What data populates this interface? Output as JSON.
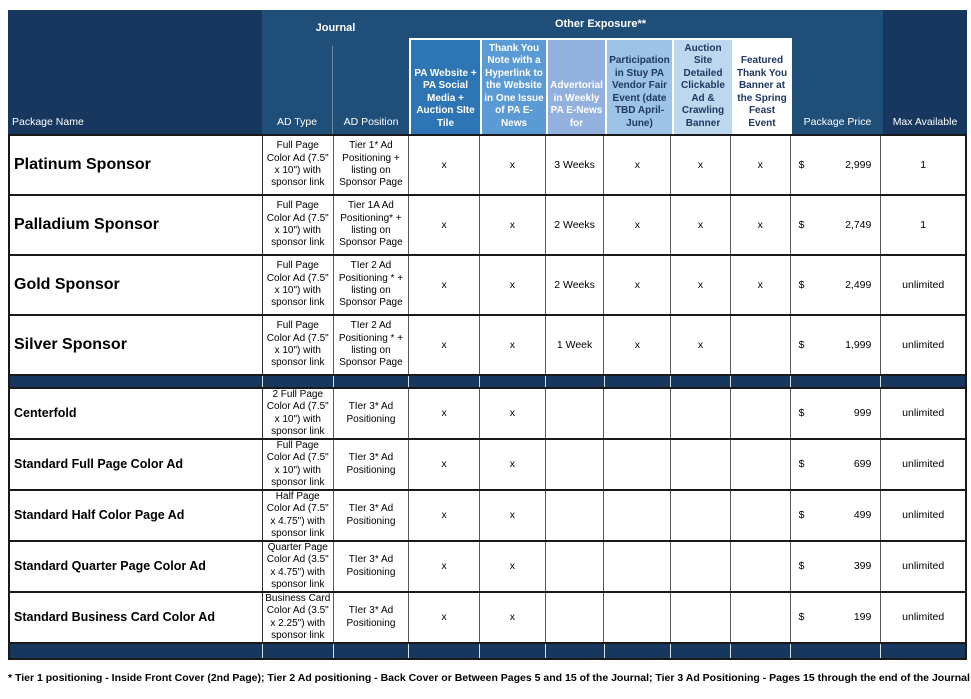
{
  "colors": {
    "navy_dark": "#17375E",
    "navy_mid": "#1F4E79",
    "header_text": "#FFFFFF",
    "navy_label_text": "#1F3864",
    "grid_dark": "#1a1a1a",
    "grid_gray": "#595959"
  },
  "table": {
    "group_headers": {
      "journal": "Journal",
      "other_exposure": "Other Exposure**"
    },
    "columns": {
      "package_name": "Package Name",
      "ad_type": "AD Type",
      "ad_position": "AD Position",
      "package_price": "Package Price",
      "max_available": "Max Available",
      "exposure": [
        {
          "label": "PA Website + PA Social Media + Auction SIte Tile",
          "bg": "#2E75B6",
          "fg": "#FFFFFF"
        },
        {
          "label": "Thank You Note with a Hyperlink to the Website in One Issue of PA E-News",
          "bg": "#5B9BD5",
          "fg": "#FFFFFF"
        },
        {
          "label": "Advertorial in Weekly PA E-News for",
          "bg": "#92B1DE",
          "fg": "#FFFFFF"
        },
        {
          "label": "Participation in Stuy PA Vendor Fair Event (date TBD April-June)",
          "bg": "#9DC3E6",
          "fg": "#1F3864"
        },
        {
          "label": "Auction Site Detailed Clickable Ad & Crawling Banner",
          "bg": "#BDD7EE",
          "fg": "#1F3864"
        },
        {
          "label": "Featured Thank You Banner at the Spring Feast Event",
          "bg": "#FFFFFF",
          "fg": "#1F3864"
        }
      ]
    },
    "rows": [
      {
        "type": "row",
        "size": "large",
        "name": "Platinum Sponsor",
        "ad_type": "Full Page Color Ad (7.5\" x 10\") with sponsor link",
        "ad_position": "Tier 1* Ad Positioning + listing on Sponsor Page",
        "exposure": [
          "x",
          "x",
          "3 Weeks",
          "x",
          "x",
          "x"
        ],
        "currency": "$",
        "price": "2,999",
        "max": "1"
      },
      {
        "type": "row",
        "size": "large",
        "name": "Palladium Sponsor",
        "ad_type": "Full Page Color Ad (7.5\" x 10\") with sponsor link",
        "ad_position": "Tier 1A Ad Positioning* + listing on Sponsor Page",
        "exposure": [
          "x",
          "x",
          "2 Weeks",
          "x",
          "x",
          "x"
        ],
        "currency": "$",
        "price": "2,749",
        "max": "1"
      },
      {
        "type": "row",
        "size": "large",
        "name": "Gold Sponsor",
        "ad_type": "Full Page Color Ad (7.5\" x 10\") with sponsor link",
        "ad_position": "TIer 2 Ad Positioning * + listing on Sponsor Page",
        "exposure": [
          "x",
          "x",
          "2 Weeks",
          "x",
          "x",
          "x"
        ],
        "currency": "$",
        "price": "2,499",
        "max": "unlimited"
      },
      {
        "type": "row",
        "size": "large",
        "name": "Silver Sponsor",
        "ad_type": "Full Page Color Ad (7.5\" x 10\") with sponsor link",
        "ad_position": "TIer 2 Ad Positioning * + listing on Sponsor Page",
        "exposure": [
          "x",
          "x",
          "1 Week",
          "x",
          "x",
          ""
        ],
        "currency": "$",
        "price": "1,999",
        "max": "unlimited"
      },
      {
        "type": "separator"
      },
      {
        "type": "row",
        "size": "small",
        "name": "Centerfold",
        "ad_type": "2 Full Page Color Ad (7.5\" x 10\") with sponsor link",
        "ad_position": "TIer 3* Ad Positioning",
        "exposure": [
          "x",
          "x",
          "",
          "",
          "",
          ""
        ],
        "currency": "$",
        "price": "999",
        "max": "unlimited"
      },
      {
        "type": "row",
        "size": "small",
        "name": "Standard Full Page Color Ad",
        "ad_type": "Full Page Color Ad (7.5\" x 10\") with sponsor link",
        "ad_position": "TIer 3* Ad Positioning",
        "exposure": [
          "x",
          "x",
          "",
          "",
          "",
          ""
        ],
        "currency": "$",
        "price": "699",
        "max": "unlimited"
      },
      {
        "type": "row",
        "size": "small",
        "name": "Standard Half Color Page Ad",
        "ad_type": "Half Page Color Ad (7.5\" x 4.75\") with sponsor link",
        "ad_position": "TIer 3* Ad Positioning",
        "exposure": [
          "x",
          "x",
          "",
          "",
          "",
          ""
        ],
        "currency": "$",
        "price": "499",
        "max": "unlimited"
      },
      {
        "type": "row",
        "size": "small",
        "name": "Standard Quarter Page Color Ad",
        "ad_type": "Quarter Page Color Ad (3.5\" x 4.75\") with sponsor link",
        "ad_position": "TIer 3* Ad Positioning",
        "exposure": [
          "x",
          "x",
          "",
          "",
          "",
          ""
        ],
        "currency": "$",
        "price": "399",
        "max": "unlimited"
      },
      {
        "type": "row",
        "size": "small",
        "name": "Standard Business Card Color Ad",
        "ad_type": "Business Card Color Ad (3.5\" x 2.25\") with sponsor link",
        "ad_position": "TIer 3* Ad Positioning",
        "exposure": [
          "x",
          "x",
          "",
          "",
          "",
          ""
        ],
        "currency": "$",
        "price": "199",
        "max": "unlimited"
      }
    ]
  },
  "footer": {
    "note": "* Tier 1 positioning -  Inside Front Cover (2nd Page); Tier 2 Ad positioning - Back Cover or Between Pages 5 and 15 of the Journal; Tier 3 Ad Positioning - Pages 15 through the end of the Journal;"
  }
}
